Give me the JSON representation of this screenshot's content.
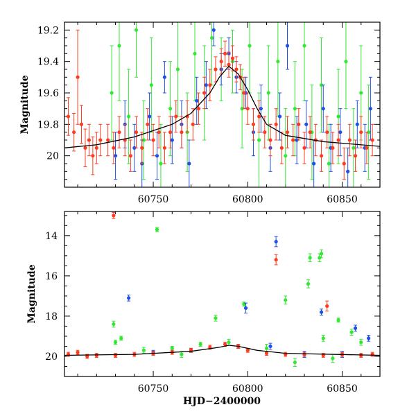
{
  "chart_data": [
    {
      "type": "scatter",
      "title": "",
      "xlabel": "",
      "ylabel": "Magnitude",
      "xlim": [
        60703,
        60870
      ],
      "ylim": [
        20.2,
        19.15
      ],
      "y_inverted": true,
      "x_major_ticks": [
        60750,
        60800,
        60850
      ],
      "x_minor_step": 10,
      "y_major_ticks": [
        19.2,
        19.4,
        19.6,
        19.8,
        20
      ],
      "y_tick_labels": [
        "19.2",
        "19.4",
        "19.6",
        "19.8",
        "20"
      ],
      "y_minor_step": 0.05,
      "grid": false,
      "legend": "none",
      "colors": {
        "green": "#33e833",
        "blue": "#1f50e6",
        "red": "#ff3b1f",
        "model": "#000000"
      },
      "model_curve": [
        [
          60703,
          19.95
        ],
        [
          60720,
          19.93
        ],
        [
          60740,
          19.88
        ],
        [
          60760,
          19.8
        ],
        [
          60770,
          19.73
        ],
        [
          60780,
          19.6
        ],
        [
          60785,
          19.5
        ],
        [
          60790,
          19.43
        ],
        [
          60795,
          19.48
        ],
        [
          60800,
          19.58
        ],
        [
          60805,
          19.7
        ],
        [
          60810,
          19.8
        ],
        [
          60820,
          19.87
        ],
        [
          60840,
          19.91
        ],
        [
          60870,
          19.94
        ]
      ],
      "series": [
        {
          "color": "green",
          "points": [
            [
              60728,
              19.6,
              0.3
            ],
            [
              60732,
              19.3,
              0.35
            ],
            [
              60737,
              19.75,
              0.3
            ],
            [
              60741,
              19.2,
              0.3
            ],
            [
              60745,
              19.9,
              0.25
            ],
            [
              60749,
              19.55,
              0.3
            ],
            [
              60754,
              20.05,
              0.25
            ],
            [
              60759,
              19.7,
              0.3
            ],
            [
              60763,
              19.45,
              0.3
            ],
            [
              60768,
              19.85,
              0.25
            ],
            [
              60772,
              19.35,
              0.3
            ],
            [
              60777,
              19.6,
              0.3
            ],
            [
              60781,
              19.25,
              0.3
            ],
            [
              60786,
              19.45,
              0.2
            ],
            [
              60792,
              19.4,
              0.2
            ],
            [
              60797,
              19.7,
              0.25
            ],
            [
              60801,
              19.3,
              0.3
            ],
            [
              60806,
              19.9,
              0.3
            ],
            [
              60811,
              19.6,
              0.3
            ],
            [
              60816,
              19.4,
              0.35
            ],
            [
              60820,
              20.0,
              0.3
            ],
            [
              60825,
              19.7,
              0.3
            ],
            [
              60830,
              19.3,
              0.35
            ],
            [
              60834,
              19.85,
              0.3
            ],
            [
              60839,
              19.55,
              0.3
            ],
            [
              60843,
              20.05,
              0.25
            ],
            [
              60848,
              19.75,
              0.3
            ],
            [
              60852,
              19.4,
              0.3
            ],
            [
              60856,
              19.95,
              0.25
            ],
            [
              60860,
              19.6,
              0.3
            ],
            [
              60864,
              19.85,
              0.3
            ]
          ]
        },
        {
          "color": "blue",
          "points": [
            [
              60730,
              20.0,
              0.15
            ],
            [
              60735,
              19.8,
              0.15
            ],
            [
              60740,
              19.95,
              0.15
            ],
            [
              60744,
              20.05,
              0.15
            ],
            [
              60748,
              19.75,
              0.15
            ],
            [
              60752,
              20.0,
              0.15
            ],
            [
              60756,
              19.5,
              0.1
            ],
            [
              60760,
              19.9,
              0.15
            ],
            [
              60765,
              19.8,
              0.15
            ],
            [
              60769,
              20.05,
              0.15
            ],
            [
              60773,
              19.65,
              0.15
            ],
            [
              60778,
              19.55,
              0.15
            ],
            [
              60782,
              19.2,
              0.1
            ],
            [
              60786,
              19.45,
              0.1
            ],
            [
              60790,
              19.35,
              0.1
            ],
            [
              60794,
              19.5,
              0.1
            ],
            [
              60799,
              19.6,
              0.1
            ],
            [
              60803,
              19.85,
              0.15
            ],
            [
              60807,
              19.7,
              0.15
            ],
            [
              60812,
              19.95,
              0.15
            ],
            [
              60817,
              19.75,
              0.15
            ],
            [
              60821,
              19.3,
              0.15
            ],
            [
              60826,
              19.9,
              0.15
            ],
            [
              60831,
              19.8,
              0.15
            ],
            [
              60835,
              20.05,
              0.15
            ],
            [
              60840,
              19.7,
              0.15
            ],
            [
              60844,
              19.95,
              0.15
            ],
            [
              60849,
              19.85,
              0.15
            ],
            [
              60853,
              20.1,
              0.15
            ],
            [
              60858,
              19.8,
              0.15
            ],
            [
              60862,
              19.95,
              0.15
            ],
            [
              60865,
              19.7,
              0.2
            ]
          ]
        },
        {
          "color": "red",
          "points": [
            [
              60705,
              19.75,
              0.12
            ],
            [
              60708,
              19.85,
              0.12
            ],
            [
              60710,
              19.5,
              0.3
            ],
            [
              60712,
              19.8,
              0.12
            ],
            [
              60714,
              19.95,
              0.12
            ],
            [
              60716,
              19.9,
              0.1
            ],
            [
              60718,
              20.0,
              0.12
            ],
            [
              60720,
              19.95,
              0.1
            ],
            [
              60722,
              19.9,
              0.1
            ],
            [
              60726,
              19.9,
              0.1
            ],
            [
              60729,
              19.95,
              0.1
            ],
            [
              60732,
              19.85,
              0.1
            ],
            [
              60735,
              19.9,
              0.1
            ],
            [
              60738,
              20.0,
              0.1
            ],
            [
              60741,
              19.85,
              0.1
            ],
            [
              60744,
              19.95,
              0.1
            ],
            [
              60747,
              19.8,
              0.1
            ],
            [
              60750,
              19.9,
              0.1
            ],
            [
              60753,
              19.85,
              0.1
            ],
            [
              60756,
              19.95,
              0.1
            ],
            [
              60759,
              19.85,
              0.1
            ],
            [
              60762,
              19.75,
              0.1
            ],
            [
              60765,
              19.85,
              0.1
            ],
            [
              60768,
              19.75,
              0.1
            ],
            [
              60771,
              19.8,
              0.1
            ],
            [
              60774,
              19.7,
              0.1
            ],
            [
              60777,
              19.6,
              0.1
            ],
            [
              60780,
              19.55,
              0.1
            ],
            [
              60783,
              19.45,
              0.08
            ],
            [
              60786,
              19.4,
              0.08
            ],
            [
              60788,
              19.35,
              0.08
            ],
            [
              60790,
              19.42,
              0.08
            ],
            [
              60792,
              19.38,
              0.08
            ],
            [
              60794,
              19.45,
              0.08
            ],
            [
              60796,
              19.5,
              0.08
            ],
            [
              60798,
              19.6,
              0.1
            ],
            [
              60800,
              19.7,
              0.1
            ],
            [
              60803,
              19.8,
              0.1
            ],
            [
              60806,
              19.75,
              0.1
            ],
            [
              60809,
              19.85,
              0.1
            ],
            [
              60812,
              19.9,
              0.1
            ],
            [
              60815,
              19.8,
              0.1
            ],
            [
              60818,
              19.95,
              0.1
            ],
            [
              60821,
              19.85,
              0.1
            ],
            [
              60824,
              19.9,
              0.1
            ],
            [
              60827,
              19.8,
              0.1
            ],
            [
              60830,
              19.95,
              0.1
            ],
            [
              60833,
              19.85,
              0.1
            ],
            [
              60836,
              19.9,
              0.1
            ],
            [
              60839,
              20.0,
              0.1
            ],
            [
              60842,
              19.85,
              0.1
            ],
            [
              60845,
              19.95,
              0.1
            ],
            [
              60848,
              19.9,
              0.1
            ],
            [
              60851,
              20.05,
              0.1
            ],
            [
              60854,
              19.9,
              0.1
            ],
            [
              60857,
              20.0,
              0.1
            ],
            [
              60860,
              19.85,
              0.1
            ],
            [
              60863,
              19.95,
              0.1
            ],
            [
              60866,
              19.9,
              0.1
            ]
          ]
        }
      ]
    },
    {
      "type": "scatter",
      "title": "",
      "xlabel": "HJD−2400000",
      "ylabel": "Magnitude",
      "xlim": [
        60703,
        60870
      ],
      "ylim": [
        21.0,
        12.8
      ],
      "y_inverted": true,
      "x_major_ticks": [
        60750,
        60800,
        60850
      ],
      "x_minor_step": 10,
      "y_major_ticks": [
        14,
        16,
        18,
        20
      ],
      "y_tick_labels": [
        "14",
        "16",
        "18",
        "20"
      ],
      "y_minor_step": 0.5,
      "grid": false,
      "legend": "none",
      "colors": {
        "green": "#33e833",
        "blue": "#1f50e6",
        "red": "#ff3b1f",
        "model": "#000000"
      },
      "model_curve": [
        [
          60703,
          19.95
        ],
        [
          60740,
          19.9
        ],
        [
          60770,
          19.75
        ],
        [
          60785,
          19.55
        ],
        [
          60790,
          19.45
        ],
        [
          60795,
          19.5
        ],
        [
          60805,
          19.7
        ],
        [
          60820,
          19.85
        ],
        [
          60870,
          19.95
        ]
      ],
      "series": [
        {
          "color": "green",
          "points": [
            [
              60729,
              18.4,
              0.15
            ],
            [
              60730,
              19.3,
              0.1
            ],
            [
              60733,
              19.1,
              0.1
            ],
            [
              60752,
              13.7,
              0.1
            ],
            [
              60760,
              19.6,
              0.1
            ],
            [
              60775,
              19.4,
              0.1
            ],
            [
              60783,
              18.1,
              0.15
            ],
            [
              60798,
              17.4,
              0.1
            ],
            [
              60820,
              17.2,
              0.2
            ],
            [
              60832,
              16.4,
              0.2
            ],
            [
              60833,
              15.1,
              0.2
            ],
            [
              60838,
              15.1,
              0.2
            ],
            [
              60839,
              14.9,
              0.2
            ],
            [
              60840,
              19.1,
              0.15
            ],
            [
              60848,
              18.2,
              0.1
            ],
            [
              60855,
              18.8,
              0.15
            ],
            [
              60745,
              19.7,
              0.15
            ],
            [
              60765,
              19.9,
              0.15
            ],
            [
              60790,
              19.3,
              0.15
            ],
            [
              60810,
              19.6,
              0.2
            ],
            [
              60825,
              20.3,
              0.2
            ],
            [
              60845,
              20.1,
              0.2
            ],
            [
              60860,
              19.3,
              0.15
            ]
          ]
        },
        {
          "color": "blue",
          "points": [
            [
              60737,
              17.1,
              0.15
            ],
            [
              60799,
              17.6,
              0.25
            ],
            [
              60815,
              14.3,
              0.25
            ],
            [
              60839,
              17.8,
              0.15
            ],
            [
              60857,
              18.6,
              0.15
            ],
            [
              60864,
              19.1,
              0.15
            ],
            [
              60750,
              19.8,
              0.1
            ],
            [
              60770,
              19.7,
              0.1
            ],
            [
              60795,
              19.5,
              0.1
            ],
            [
              60812,
              19.5,
              0.15
            ],
            [
              60830,
              19.9,
              0.15
            ],
            [
              60850,
              19.9,
              0.15
            ]
          ]
        },
        {
          "color": "red",
          "points": [
            [
              60729,
              13.0,
              0.15
            ],
            [
              60815,
              15.2,
              0.25
            ],
            [
              60842,
              17.5,
              0.25
            ],
            [
              60705,
              19.9,
              0.1
            ],
            [
              60710,
              19.8,
              0.1
            ],
            [
              60715,
              20.0,
              0.1
            ],
            [
              60720,
              19.95,
              0.1
            ],
            [
              60730,
              19.95,
              0.1
            ],
            [
              60740,
              19.9,
              0.1
            ],
            [
              60750,
              19.85,
              0.1
            ],
            [
              60760,
              19.8,
              0.1
            ],
            [
              60770,
              19.7,
              0.1
            ],
            [
              60780,
              19.55,
              0.1
            ],
            [
              60788,
              19.4,
              0.1
            ],
            [
              60795,
              19.5,
              0.1
            ],
            [
              60800,
              19.7,
              0.1
            ],
            [
              60810,
              19.85,
              0.1
            ],
            [
              60820,
              19.9,
              0.1
            ],
            [
              60830,
              19.9,
              0.1
            ],
            [
              60840,
              19.95,
              0.1
            ],
            [
              60850,
              19.9,
              0.1
            ],
            [
              60860,
              19.95,
              0.1
            ],
            [
              60866,
              19.9,
              0.1
            ]
          ]
        }
      ]
    }
  ]
}
